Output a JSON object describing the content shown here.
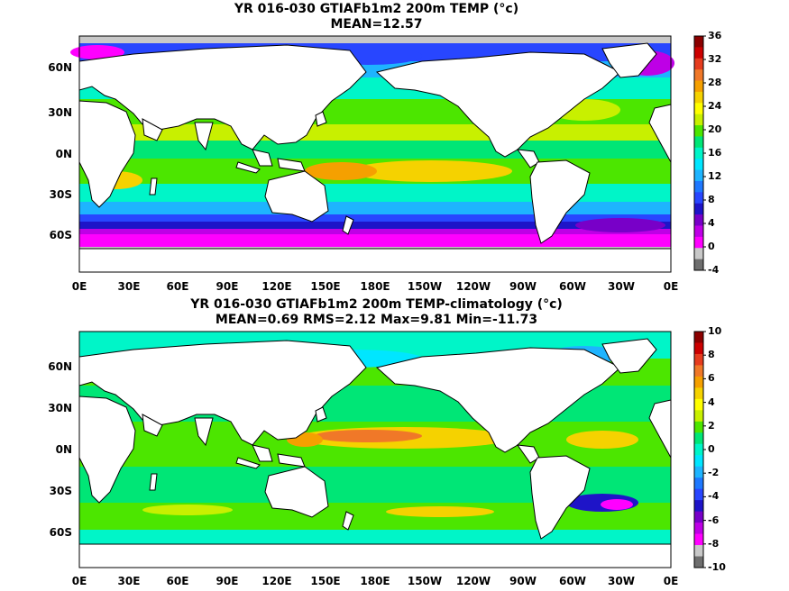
{
  "panels": [
    {
      "title": "YR 016-030 GTIAFb1m2 200m TEMP (°c)",
      "subtitle": "MEAN=12.57",
      "lat_labels": [
        "60N",
        "30N",
        "0N",
        "30S",
        "60S"
      ],
      "lon_labels": [
        "0E",
        "30E",
        "60E",
        "90E",
        "120E",
        "150E",
        "180E",
        "150W",
        "120W",
        "90W",
        "60W",
        "30W",
        "0E"
      ],
      "colorbar_labels": [
        "36",
        "32",
        "28",
        "24",
        "20",
        "16",
        "12",
        "8",
        "4",
        "0",
        "-4"
      ],
      "colorbar_colors": [
        "#8b0000",
        "#cc0000",
        "#e63c1e",
        "#f07828",
        "#f5a000",
        "#f5d200",
        "#ffff00",
        "#c8f000",
        "#4ce600",
        "#00e676",
        "#00f5c8",
        "#00e6ff",
        "#1eb4ff",
        "#1e78ff",
        "#2846ff",
        "#1e14c8",
        "#7800c8",
        "#be00e6",
        "#ff00ff",
        "#c8c8c8",
        "#6e6e6e"
      ],
      "mean": 12.57
    },
    {
      "title": "YR 016-030 GTIAFb1m2 200m TEMP-climatology (°c)",
      "subtitle": "MEAN=0.69   RMS=2.12   Max=9.81   Min=-11.73",
      "lat_labels": [
        "60N",
        "30N",
        "0N",
        "30S",
        "60S"
      ],
      "lon_labels": [
        "0E",
        "30E",
        "60E",
        "90E",
        "120E",
        "150E",
        "180E",
        "150W",
        "120W",
        "90W",
        "60W",
        "30W",
        "0E"
      ],
      "colorbar_labels": [
        "10",
        "8",
        "6",
        "4",
        "2",
        "0",
        "-2",
        "-4",
        "-6",
        "-8",
        "-10"
      ],
      "colorbar_colors": [
        "#8b0000",
        "#cc0000",
        "#e63c1e",
        "#f07828",
        "#f5a000",
        "#f5d200",
        "#ffff00",
        "#c8f000",
        "#4ce600",
        "#00e676",
        "#00f5c8",
        "#00e6ff",
        "#1eb4ff",
        "#1e78ff",
        "#2846ff",
        "#1e14c8",
        "#7800c8",
        "#be00e6",
        "#ff00ff",
        "#c8c8c8",
        "#6e6e6e"
      ],
      "mean": 0.69,
      "rms": 2.12,
      "max": 9.81,
      "min": -11.73
    }
  ]
}
